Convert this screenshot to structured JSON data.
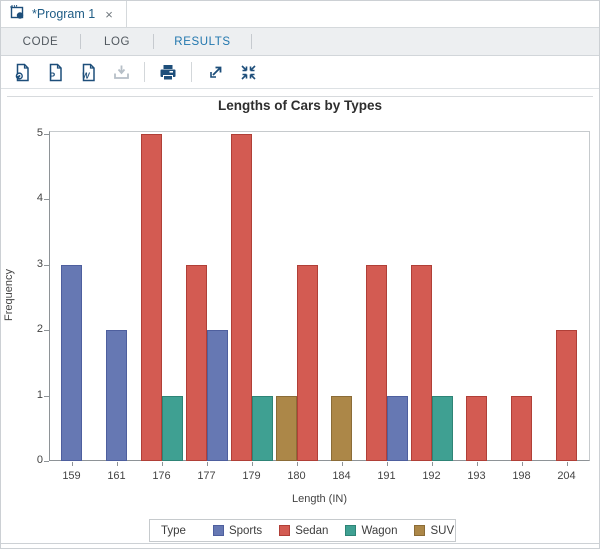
{
  "window": {
    "doc_tab": {
      "title": "*Program 1",
      "close_glyph": "×",
      "icon": "program-icon"
    }
  },
  "tabs": {
    "items": [
      {
        "label": "CODE",
        "active": false
      },
      {
        "label": "LOG",
        "active": false
      },
      {
        "label": "RESULTS",
        "active": true
      }
    ]
  },
  "toolbar": {
    "icons": [
      "download-html-results-icon",
      "download-pdf-results-icon",
      "download-word-results-icon",
      "download-disabled-icon",
      "print-icon",
      "open-in-new-window-icon",
      "exit-maximized-view-icon"
    ],
    "pdf_badge": "P",
    "word_badge": "W"
  },
  "colors": {
    "accent_blue": "#2277ae",
    "toolbar_icon": "#1d4e7a",
    "toolbar_icon_disabled": "#b6bfc7",
    "axis_line": "#8e9397",
    "frame_line": "#c6cacd"
  },
  "chart_data": {
    "type": "bar",
    "title": "Lengths of Cars by Types",
    "xlabel": "Length (IN)",
    "ylabel": "Frequency",
    "ylim": [
      0,
      5
    ],
    "yticks": [
      "0",
      "1",
      "2",
      "3",
      "4",
      "5"
    ],
    "grid": false,
    "legend_position": "bottom",
    "legend_title": "Type",
    "groups": [
      {
        "name": "Sports",
        "fill": "#6678B3",
        "stroke": "#4E5F9E"
      },
      {
        "name": "Sedan",
        "fill": "#D35B52",
        "stroke": "#B03F37"
      },
      {
        "name": "Wagon",
        "fill": "#3FA092",
        "stroke": "#2E8476"
      },
      {
        "name": "SUV",
        "fill": "#AC8748",
        "stroke": "#8B6C37"
      }
    ],
    "categories": [
      "159",
      "161",
      "176",
      "177",
      "179",
      "180",
      "184",
      "191",
      "192",
      "193",
      "198",
      "204"
    ],
    "clusters": [
      [
        {
          "group": "Sports",
          "value": 3
        }
      ],
      [
        {
          "group": "Sports",
          "value": 2
        }
      ],
      [
        {
          "group": "Sedan",
          "value": 5
        },
        {
          "group": "Wagon",
          "value": 1
        }
      ],
      [
        {
          "group": "Sedan",
          "value": 3
        },
        {
          "group": "Sports",
          "value": 2
        }
      ],
      [
        {
          "group": "Sedan",
          "value": 5
        },
        {
          "group": "Wagon",
          "value": 1
        }
      ],
      [
        {
          "group": "SUV",
          "value": 1
        },
        {
          "group": "Sedan",
          "value": 3
        }
      ],
      [
        {
          "group": "SUV",
          "value": 1
        }
      ],
      [
        {
          "group": "Sedan",
          "value": 3
        },
        {
          "group": "Sports",
          "value": 1
        }
      ],
      [
        {
          "group": "Sedan",
          "value": 3
        },
        {
          "group": "Wagon",
          "value": 1
        }
      ],
      [
        {
          "group": "Sedan",
          "value": 1
        }
      ],
      [
        {
          "group": "Sedan",
          "value": 1
        }
      ],
      [
        {
          "group": "Sedan",
          "value": 2
        }
      ]
    ]
  }
}
